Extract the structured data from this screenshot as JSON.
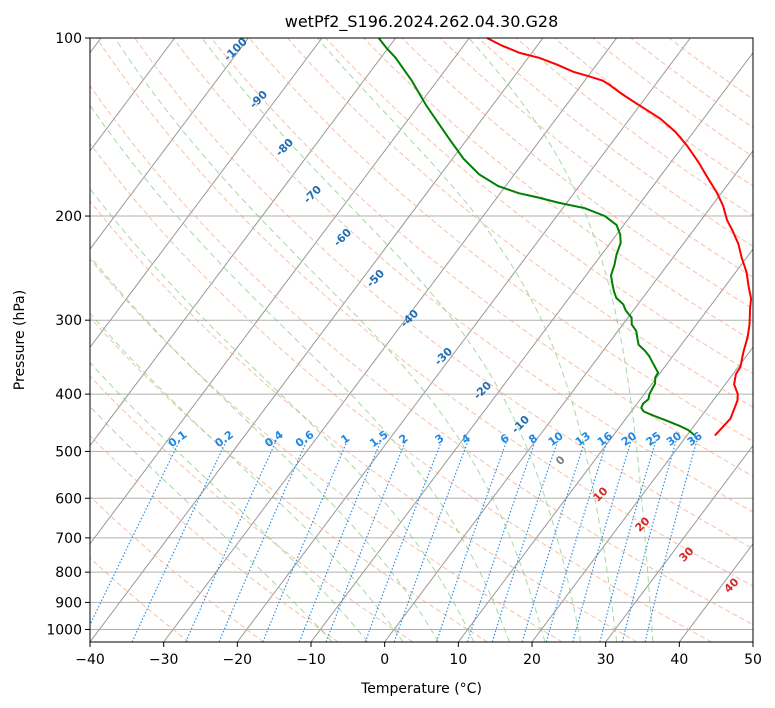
{
  "chart_data": {
    "type": "skew-t",
    "title": "wetPf2_S196.2024.262.04.30.G28",
    "xlabel": "Temperature (°C)",
    "ylabel": "Pressure (hPa)",
    "xlim": [
      -40,
      50
    ],
    "ylim": [
      1050,
      100
    ],
    "y_scale": "log",
    "grid": true,
    "x_ticks": [
      -40,
      -30,
      -20,
      -10,
      0,
      10,
      20,
      30,
      40,
      50
    ],
    "x_tick_labels": [
      "−40",
      "−30",
      "−20",
      "−10",
      "0",
      "10",
      "20",
      "30",
      "40",
      "50"
    ],
    "y_ticks": [
      1000,
      900,
      800,
      700,
      600,
      500,
      400,
      300,
      200,
      100
    ],
    "y_tick_labels": [
      "1000",
      "900",
      "800",
      "700",
      "600",
      "500",
      "400",
      "300",
      "200",
      "100"
    ],
    "series": [
      {
        "color": "#ff0000",
        "points": [
          [
            23.8,
            470
          ],
          [
            24.2,
            440
          ],
          [
            23.3,
            410
          ],
          [
            22.7,
            400
          ],
          [
            21.2,
            385
          ],
          [
            20.4,
            370
          ],
          [
            20.3,
            360
          ],
          [
            19.2,
            340
          ],
          [
            18.2,
            320
          ],
          [
            17.2,
            305
          ],
          [
            16.2,
            293
          ],
          [
            15.6,
            286
          ],
          [
            14.8,
            276
          ],
          [
            13.2,
            263
          ],
          [
            11.5,
            249
          ],
          [
            9.3,
            235
          ],
          [
            7.5,
            223
          ],
          [
            5.4,
            212
          ],
          [
            3.5,
            203
          ],
          [
            1.5,
            192
          ],
          [
            -0.8,
            182
          ],
          [
            -3.5,
            172
          ],
          [
            -6.3,
            162
          ],
          [
            -9.5,
            152
          ],
          [
            -12.5,
            144
          ],
          [
            -15.8,
            137
          ],
          [
            -18.8,
            132
          ],
          [
            -21.3,
            128
          ],
          [
            -23.8,
            124
          ],
          [
            -26.2,
            120
          ],
          [
            -27.6,
            118
          ],
          [
            -30.0,
            116
          ],
          [
            -32.5,
            114
          ],
          [
            -35.3,
            111
          ],
          [
            -38.5,
            108
          ],
          [
            -41.6,
            106
          ],
          [
            -44.8,
            103
          ],
          [
            -47.6,
            100
          ]
        ]
      },
      {
        "color": "#008000",
        "points": [
          [
            21.1,
            470
          ],
          [
            19.6,
            460
          ],
          [
            18.1,
            453
          ],
          [
            15.6,
            443
          ],
          [
            13.7,
            436
          ],
          [
            11.7,
            428
          ],
          [
            11.0,
            422
          ],
          [
            10.8,
            415
          ],
          [
            11.1,
            408
          ],
          [
            10.7,
            400
          ],
          [
            10.5,
            390
          ],
          [
            10.4,
            384
          ],
          [
            9.8,
            375
          ],
          [
            9.7,
            368
          ],
          [
            8.7,
            360
          ],
          [
            7.7,
            352
          ],
          [
            6.8,
            345
          ],
          [
            5.7,
            338
          ],
          [
            4.2,
            330
          ],
          [
            3.4,
            322
          ],
          [
            2.5,
            313
          ],
          [
            1.2,
            305
          ],
          [
            0.5,
            297
          ],
          [
            -1.0,
            289
          ],
          [
            -2.0,
            282
          ],
          [
            -3.6,
            275
          ],
          [
            -4.6,
            268
          ],
          [
            -5.6,
            260
          ],
          [
            -6.6,
            252
          ],
          [
            -7.2,
            242
          ],
          [
            -8.0,
            232
          ],
          [
            -8.6,
            222
          ],
          [
            -9.5,
            215
          ],
          [
            -11.0,
            207
          ],
          [
            -13.5,
            200
          ],
          [
            -17.0,
            194
          ],
          [
            -21.0,
            190
          ],
          [
            -24.5,
            186
          ],
          [
            -27.5,
            183
          ],
          [
            -31.0,
            178
          ],
          [
            -34.8,
            170
          ],
          [
            -38.5,
            160
          ],
          [
            -42.5,
            148
          ],
          [
            -46.0,
            138
          ],
          [
            -49.0,
            130
          ],
          [
            -51.2,
            124
          ],
          [
            -53.5,
            118
          ],
          [
            -55.7,
            113
          ],
          [
            -58.0,
            108
          ],
          [
            -60.2,
            104
          ],
          [
            -62.3,
            100
          ]
        ]
      }
    ],
    "dry_adiabat_labels": [
      "-100",
      "-90",
      "-80",
      "-70",
      "-60",
      "-50",
      "-40",
      "-30",
      "-20",
      "-10",
      "0",
      "10",
      "20",
      "30",
      "40"
    ],
    "mixing_ratio_labels": [
      "0.1",
      "0.2",
      "0.4",
      "0.6",
      "1",
      "1.5",
      "2",
      "3",
      "4",
      "6",
      "8",
      "10",
      "13",
      "16",
      "20",
      "25",
      "30",
      "36"
    ],
    "colors": {
      "temperature": "#ff0000",
      "dewpoint": "#008000",
      "isotherm": "#999999",
      "dry_adiabat": "#f4a582",
      "moist_adiabat": "#7fc97f",
      "mixing_ratio": "#1e88e5",
      "isobar_grid": "#b0b0b0",
      "label_dry_adiabat": "#1f6fb4",
      "label_mixing_ratio": "#1e88e5",
      "label_hot": "#d62728",
      "label_zero": "#808080"
    }
  }
}
